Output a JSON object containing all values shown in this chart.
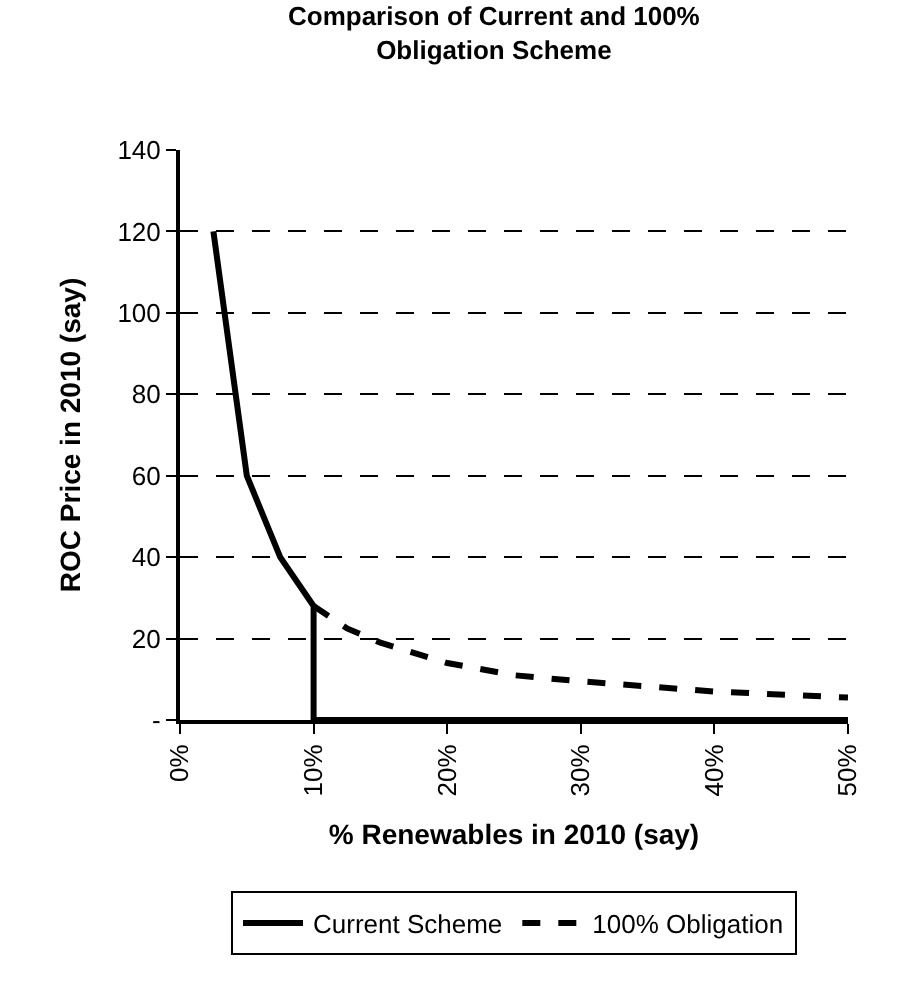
{
  "chart_data": {
    "type": "line",
    "title": "Comparison of Current and 100%\nObligation Scheme",
    "xlabel": "% Renewables in 2010 (say)",
    "ylabel": "ROC Price in 2010 (say)",
    "xlim": [
      0,
      50
    ],
    "xticks": [
      {
        "value": 0,
        "label": "0%"
      },
      {
        "value": 10,
        "label": "10%"
      },
      {
        "value": 20,
        "label": "20%"
      },
      {
        "value": 30,
        "label": "30%"
      },
      {
        "value": 40,
        "label": "40%"
      },
      {
        "value": 50,
        "label": "50%"
      }
    ],
    "ylim": [
      0,
      140
    ],
    "yticks": [
      {
        "value": 0,
        "label": "-"
      },
      20,
      40,
      60,
      80,
      100,
      120,
      140
    ],
    "grid": "y",
    "legend": "bottom",
    "marker": "none",
    "series": [
      {
        "name": "Current Scheme",
        "color": "#000000",
        "line_style": "solid",
        "x": [
          2.5,
          5,
          7.5,
          10,
          10,
          50
        ],
        "values": [
          120,
          60,
          40,
          28,
          0,
          0
        ]
      },
      {
        "name": "100% Obligation",
        "color": "#000000",
        "line_style": "dashed",
        "x": [
          10,
          12.5,
          15,
          20,
          25,
          30,
          40,
          50
        ],
        "values": [
          28,
          22.5,
          19,
          14,
          11,
          9.5,
          7,
          5.5
        ]
      }
    ]
  }
}
